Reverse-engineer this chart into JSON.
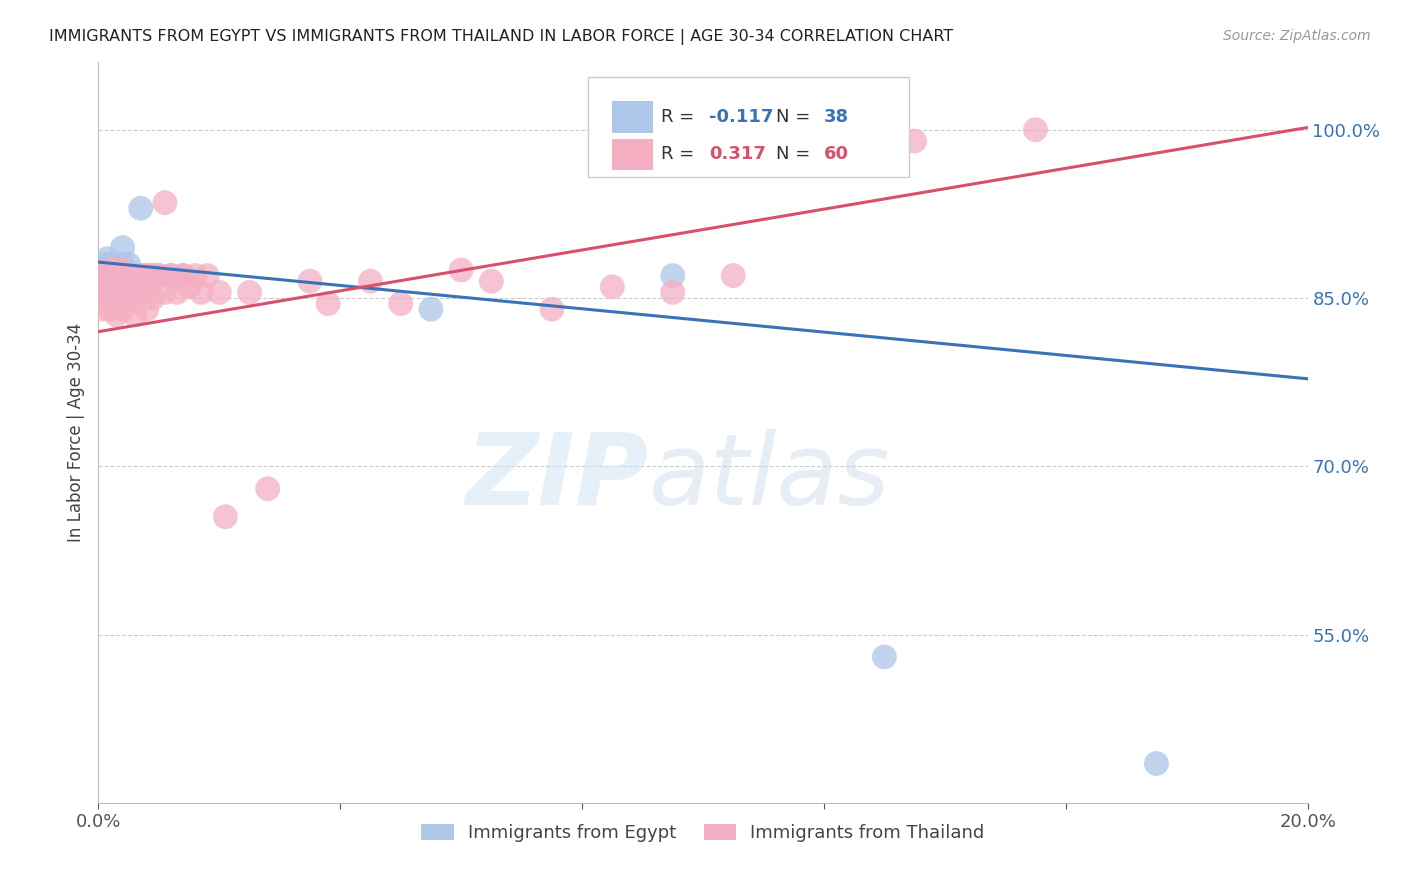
{
  "title": "IMMIGRANTS FROM EGYPT VS IMMIGRANTS FROM THAILAND IN LABOR FORCE | AGE 30-34 CORRELATION CHART",
  "source": "Source: ZipAtlas.com",
  "ylabel": "In Labor Force | Age 30-34",
  "y_tick_vals": [
    0.55,
    0.7,
    0.85,
    1.0
  ],
  "y_tick_labels": [
    "55.0%",
    "70.0%",
    "85.0%",
    "100.0%"
  ],
  "x_range": [
    0.0,
    0.2
  ],
  "y_range": [
    0.4,
    1.06
  ],
  "legend_egypt_R": "-0.117",
  "legend_egypt_N": "38",
  "legend_thailand_R": "0.317",
  "legend_thailand_N": "60",
  "egypt_color": "#aec6e8",
  "thailand_color": "#f4afc3",
  "egypt_line_color": "#3a72b8",
  "thailand_line_color": "#d94f6e",
  "watermark_zip": "ZIP",
  "watermark_atlas": "atlas",
  "egypt_scatter_x": [
    0.0005,
    0.001,
    0.001,
    0.0015,
    0.0015,
    0.0015,
    0.002,
    0.002,
    0.002,
    0.002,
    0.0025,
    0.0025,
    0.003,
    0.003,
    0.003,
    0.003,
    0.003,
    0.0035,
    0.004,
    0.004,
    0.004,
    0.004,
    0.005,
    0.005,
    0.005,
    0.006,
    0.006,
    0.007,
    0.007,
    0.008,
    0.009,
    0.01,
    0.012,
    0.014,
    0.055,
    0.095,
    0.13,
    0.175
  ],
  "egypt_scatter_y": [
    0.875,
    0.87,
    0.88,
    0.865,
    0.875,
    0.885,
    0.86,
    0.87,
    0.875,
    0.88,
    0.86,
    0.875,
    0.855,
    0.865,
    0.87,
    0.875,
    0.88,
    0.87,
    0.87,
    0.875,
    0.88,
    0.895,
    0.865,
    0.87,
    0.88,
    0.86,
    0.87,
    0.87,
    0.93,
    0.87,
    0.87,
    0.87,
    0.87,
    0.87,
    0.84,
    0.87,
    0.53,
    0.435
  ],
  "thailand_scatter_x": [
    0.0005,
    0.001,
    0.001,
    0.001,
    0.001,
    0.0015,
    0.0015,
    0.002,
    0.002,
    0.002,
    0.002,
    0.0025,
    0.003,
    0.003,
    0.003,
    0.003,
    0.003,
    0.004,
    0.004,
    0.004,
    0.004,
    0.005,
    0.005,
    0.005,
    0.006,
    0.006,
    0.006,
    0.007,
    0.007,
    0.008,
    0.008,
    0.008,
    0.009,
    0.009,
    0.01,
    0.011,
    0.011,
    0.012,
    0.013,
    0.014,
    0.015,
    0.016,
    0.017,
    0.018,
    0.02,
    0.021,
    0.025,
    0.028,
    0.035,
    0.038,
    0.045,
    0.05,
    0.06,
    0.065,
    0.075,
    0.085,
    0.095,
    0.105,
    0.135,
    0.155
  ],
  "thailand_scatter_y": [
    0.87,
    0.87,
    0.86,
    0.85,
    0.84,
    0.87,
    0.855,
    0.875,
    0.865,
    0.85,
    0.84,
    0.87,
    0.875,
    0.865,
    0.855,
    0.845,
    0.835,
    0.875,
    0.865,
    0.855,
    0.84,
    0.87,
    0.86,
    0.85,
    0.87,
    0.855,
    0.835,
    0.87,
    0.855,
    0.87,
    0.86,
    0.84,
    0.87,
    0.85,
    0.87,
    0.935,
    0.855,
    0.87,
    0.855,
    0.87,
    0.86,
    0.87,
    0.855,
    0.87,
    0.855,
    0.655,
    0.855,
    0.68,
    0.865,
    0.845,
    0.865,
    0.845,
    0.875,
    0.865,
    0.84,
    0.86,
    0.855,
    0.87,
    0.99,
    1.0
  ]
}
